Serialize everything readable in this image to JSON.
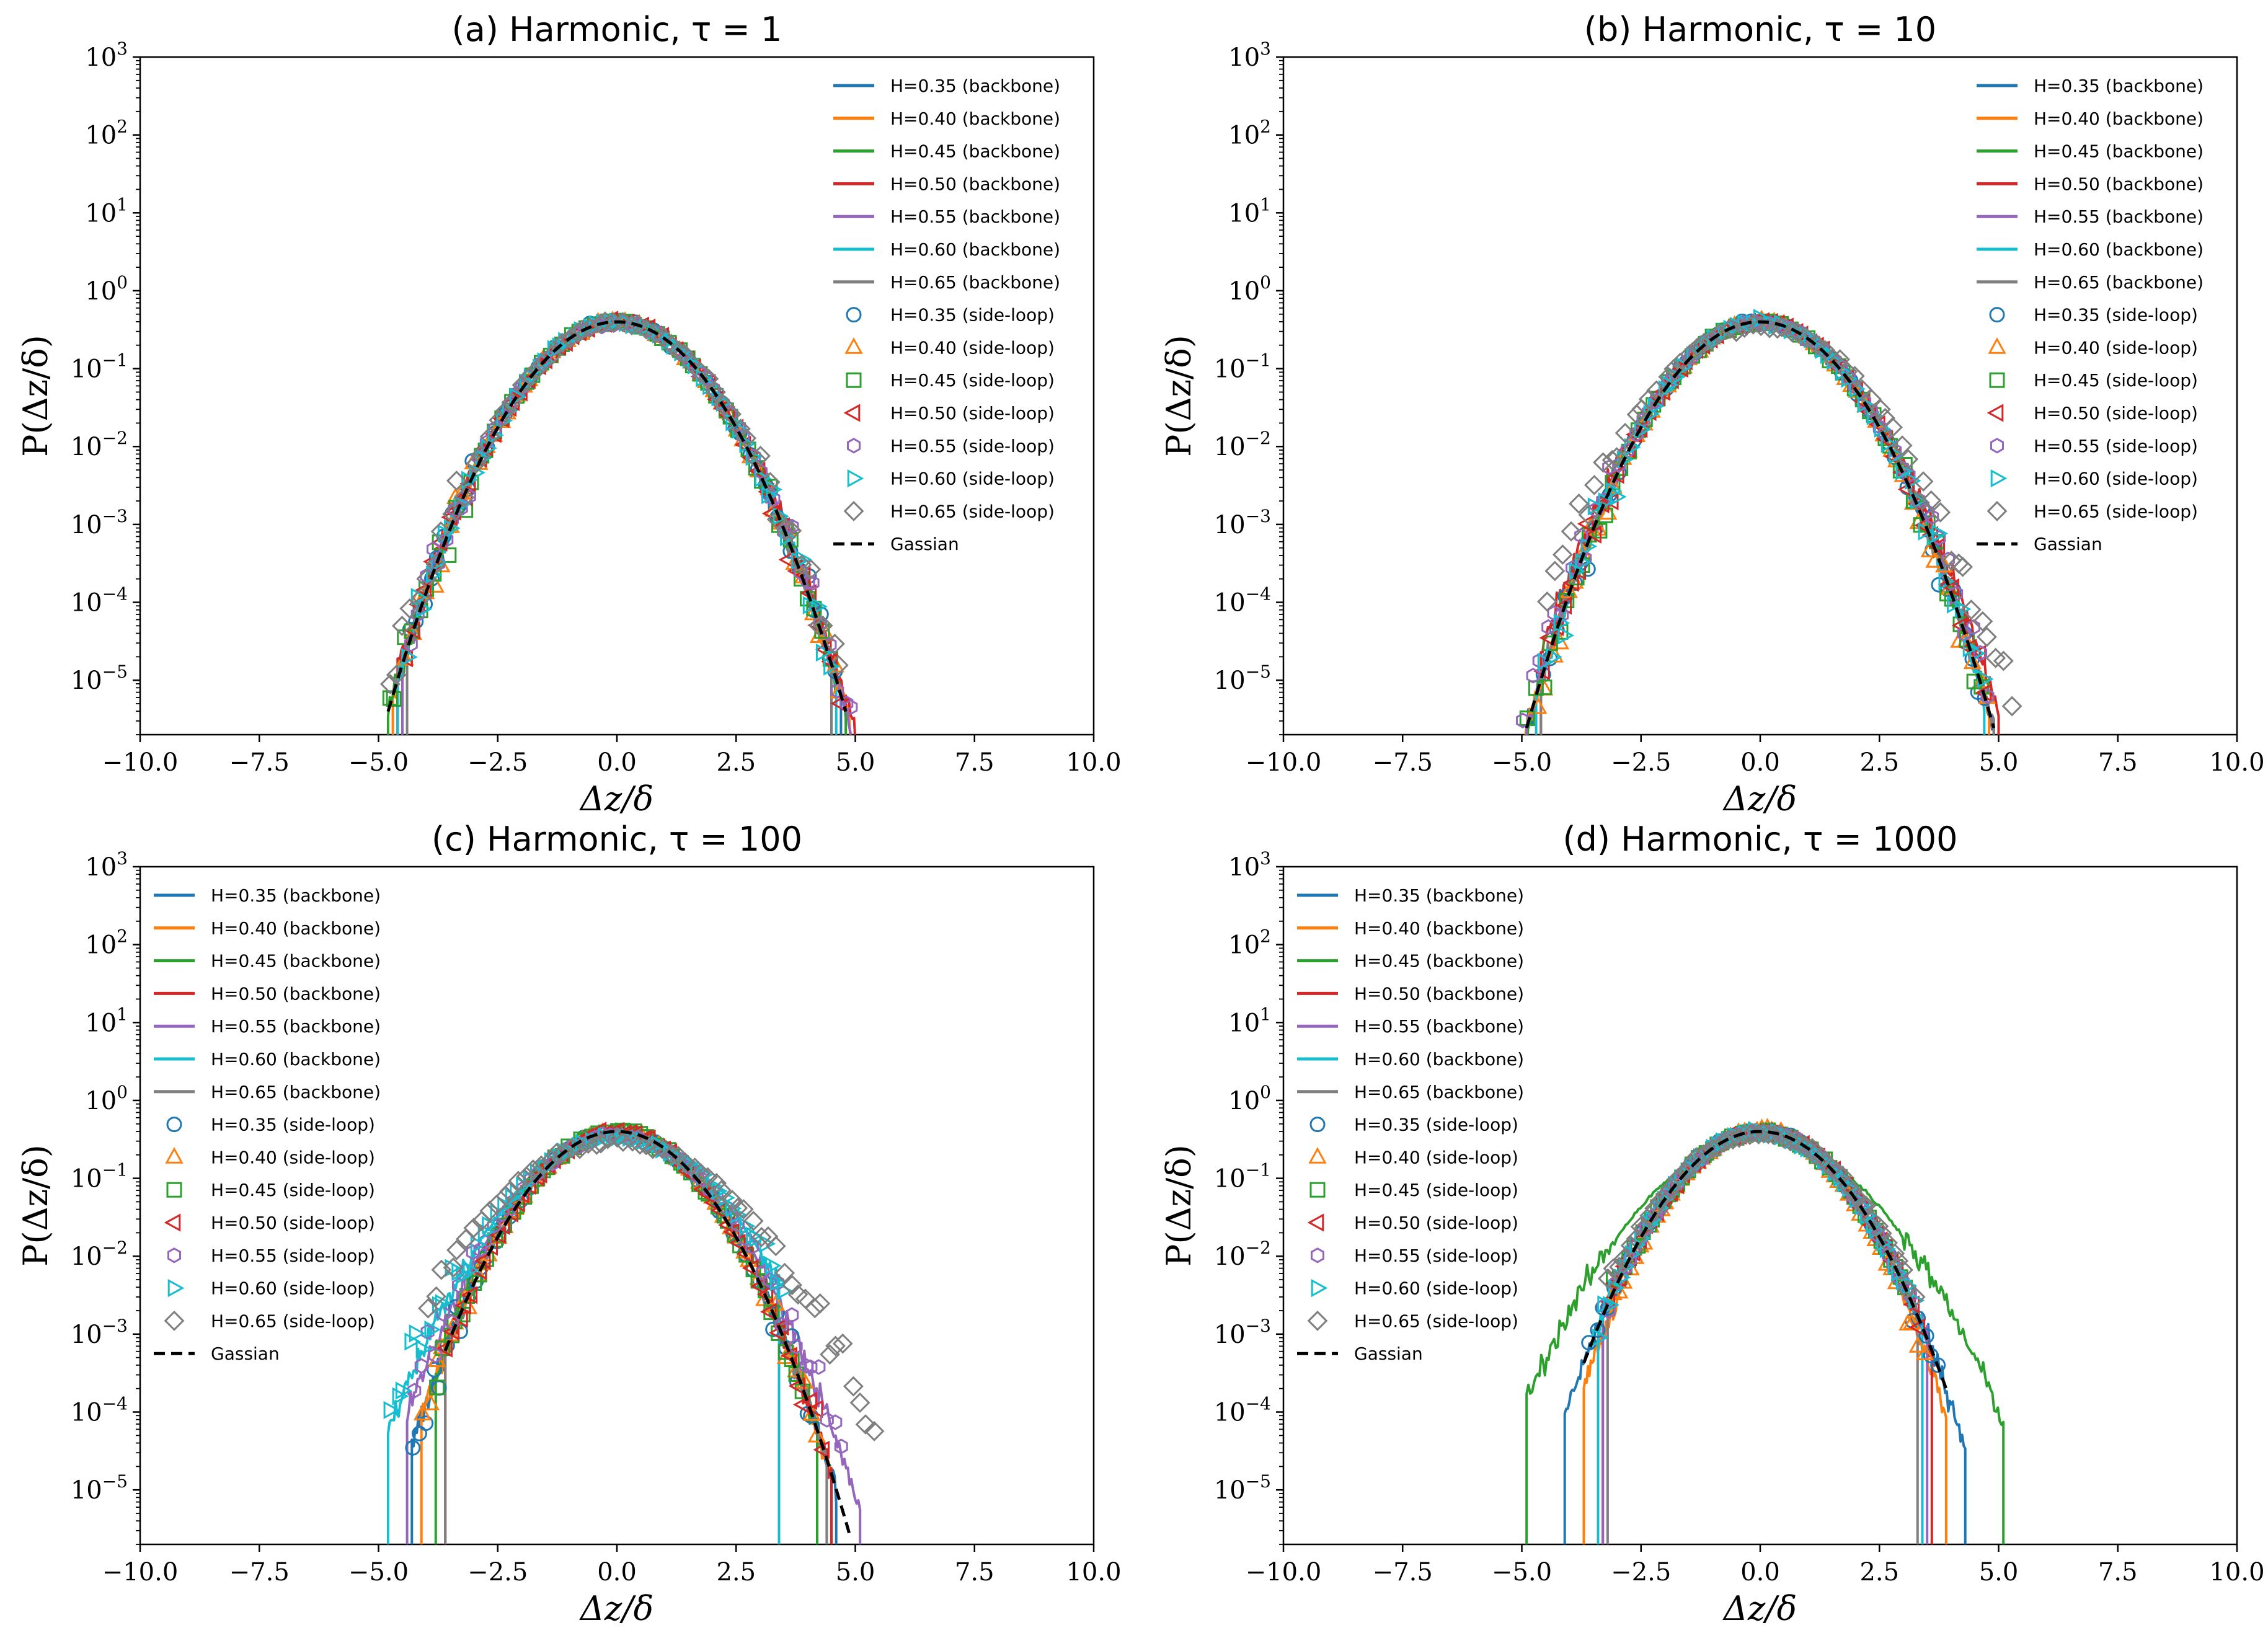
{
  "figure": {
    "gaussian_sigma": 1.0,
    "gaussian_peak": 0.3989,
    "colors": {
      "H=0.35": "#1f77b4",
      "H=0.40": "#ff7f0e",
      "H=0.45": "#2ca02c",
      "H=0.50": "#d62728",
      "H=0.55": "#9467bd",
      "H=0.60": "#17becf",
      "H=0.65": "#7f7f7f",
      "gaussian": "#000000"
    }
  },
  "chart_data": [
    {
      "type": "line",
      "panel": "a",
      "title": "(a) Harmonic, τ = 1",
      "xlabel": "Δz/δ",
      "ylabel": "P(Δz/δ)",
      "xlim": [
        -10,
        10
      ],
      "ylim": [
        2e-06,
        1000
      ],
      "yscale": "log",
      "xticks": [
        "−10.0",
        "−7.5",
        "−5.0",
        "−2.5",
        "0.0",
        "2.5",
        "5.0",
        "7.5",
        "10.0"
      ],
      "yticks": [
        "10−5",
        "10−4",
        "10−3",
        "10−2",
        "10−1",
        "100",
        "101",
        "102",
        "103"
      ],
      "legend_position": "top-right",
      "legend": [
        "H=0.35 (backbone)",
        "H=0.40 (backbone)",
        "H=0.45 (backbone)",
        "H=0.50 (backbone)",
        "H=0.55 (backbone)",
        "H=0.60 (backbone)",
        "H=0.65 (backbone)",
        "H=0.35 (side-loop)",
        "H=0.40 (side-loop)",
        "H=0.45 (side-loop)",
        "H=0.50 (side-loop)",
        "H=0.55 (side-loop)",
        "H=0.60 (side-loop)",
        "H=0.65 (side-loop)",
        "Gassian"
      ],
      "series": [
        {
          "name": "H=0.35 (backbone)",
          "color": "#1f77b4",
          "kind": "line",
          "range": [
            -4.6,
            4.7
          ],
          "sigma": 1.0
        },
        {
          "name": "H=0.40 (backbone)",
          "color": "#ff7f0e",
          "kind": "line",
          "range": [
            -4.7,
            5.1
          ],
          "sigma": 1.0
        },
        {
          "name": "H=0.45 (backbone)",
          "color": "#2ca02c",
          "kind": "line",
          "range": [
            -4.8,
            4.8
          ],
          "sigma": 1.0
        },
        {
          "name": "H=0.50 (backbone)",
          "color": "#d62728",
          "kind": "line",
          "range": [
            -4.6,
            5.2
          ],
          "sigma": 1.02
        },
        {
          "name": "H=0.55 (backbone)",
          "color": "#9467bd",
          "kind": "line",
          "range": [
            -4.5,
            4.9
          ],
          "sigma": 1.0
        },
        {
          "name": "H=0.60 (backbone)",
          "color": "#17becf",
          "kind": "line",
          "range": [
            -4.6,
            4.6
          ],
          "sigma": 1.0
        },
        {
          "name": "H=0.65 (backbone)",
          "color": "#7f7f7f",
          "kind": "line",
          "range": [
            -4.4,
            4.5
          ],
          "sigma": 1.0
        },
        {
          "name": "H=0.35 (side-loop)",
          "color": "#1f77b4",
          "kind": "circle",
          "range": [
            -4.4,
            4.7
          ],
          "sigma": 1.0
        },
        {
          "name": "H=0.40 (side-loop)",
          "color": "#ff7f0e",
          "kind": "tri-up",
          "range": [
            -4.5,
            4.8
          ],
          "sigma": 1.0
        },
        {
          "name": "H=0.45 (side-loop)",
          "color": "#2ca02c",
          "kind": "square",
          "range": [
            -5.0,
            4.6
          ],
          "sigma": 1.0
        },
        {
          "name": "H=0.50 (side-loop)",
          "color": "#d62728",
          "kind": "tri-left",
          "range": [
            -4.5,
            4.8
          ],
          "sigma": 1.0
        },
        {
          "name": "H=0.55 (side-loop)",
          "color": "#9467bd",
          "kind": "hexagon",
          "range": [
            -4.4,
            5.2
          ],
          "sigma": 1.02
        },
        {
          "name": "H=0.60 (side-loop)",
          "color": "#17becf",
          "kind": "tri-right",
          "range": [
            -4.4,
            4.6
          ],
          "sigma": 1.0
        },
        {
          "name": "H=0.65 (side-loop)",
          "color": "#7f7f7f",
          "kind": "diamond",
          "range": [
            -5.0,
            4.8
          ],
          "sigma": 1.03
        }
      ],
      "gaussian": {
        "name": "Gassian",
        "range": [
          -4.8,
          4.8
        ]
      }
    },
    {
      "type": "line",
      "panel": "b",
      "title": "(b) Harmonic, τ = 10",
      "xlabel": "Δz/δ",
      "ylabel": "P(Δz/δ)",
      "xlim": [
        -10,
        10
      ],
      "ylim": [
        2e-06,
        1000
      ],
      "yscale": "log",
      "xticks": [
        "−10.0",
        "−7.5",
        "−5.0",
        "−2.5",
        "0.0",
        "2.5",
        "5.0",
        "7.5",
        "10.0"
      ],
      "yticks": [
        "10−5",
        "10−4",
        "10−3",
        "10−2",
        "10−1",
        "100",
        "101",
        "102",
        "103"
      ],
      "legend_position": "top-right",
      "legend": [
        "H=0.35 (backbone)",
        "H=0.40 (backbone)",
        "H=0.45 (backbone)",
        "H=0.50 (backbone)",
        "H=0.55 (backbone)",
        "H=0.60 (backbone)",
        "H=0.65 (backbone)",
        "H=0.35 (side-loop)",
        "H=0.40 (side-loop)",
        "H=0.45 (side-loop)",
        "H=0.50 (side-loop)",
        "H=0.55 (side-loop)",
        "H=0.60 (side-loop)",
        "H=0.65 (side-loop)",
        "Gassian"
      ],
      "series": [
        {
          "name": "H=0.35 (backbone)",
          "color": "#1f77b4",
          "kind": "line",
          "range": [
            -4.9,
            4.9
          ],
          "sigma": 1.0
        },
        {
          "name": "H=0.40 (backbone)",
          "color": "#ff7f0e",
          "kind": "line",
          "range": [
            -5.3,
            4.8
          ],
          "sigma": 1.0
        },
        {
          "name": "H=0.45 (backbone)",
          "color": "#2ca02c",
          "kind": "line",
          "range": [
            -5.1,
            4.9
          ],
          "sigma": 1.0
        },
        {
          "name": "H=0.50 (backbone)",
          "color": "#d62728",
          "kind": "line",
          "range": [
            -4.6,
            5.0
          ],
          "sigma": 1.04
        },
        {
          "name": "H=0.55 (backbone)",
          "color": "#9467bd",
          "kind": "line",
          "range": [
            -4.9,
            4.9
          ],
          "sigma": 1.0
        },
        {
          "name": "H=0.60 (backbone)",
          "color": "#17becf",
          "kind": "line",
          "range": [
            -4.7,
            4.7
          ],
          "sigma": 1.0
        },
        {
          "name": "H=0.65 (backbone)",
          "color": "#7f7f7f",
          "kind": "line",
          "range": [
            -4.6,
            4.9
          ],
          "sigma": 1.0
        },
        {
          "name": "H=0.35 (side-loop)",
          "color": "#1f77b4",
          "kind": "circle",
          "range": [
            -4.6,
            5.0
          ],
          "sigma": 1.0
        },
        {
          "name": "H=0.40 (side-loop)",
          "color": "#ff7f0e",
          "kind": "tri-up",
          "range": [
            -4.7,
            4.9
          ],
          "sigma": 1.0
        },
        {
          "name": "H=0.45 (side-loop)",
          "color": "#2ca02c",
          "kind": "square",
          "range": [
            -4.9,
            4.8
          ],
          "sigma": 1.0
        },
        {
          "name": "H=0.50 (side-loop)",
          "color": "#d62728",
          "kind": "tri-left",
          "range": [
            -4.6,
            5.0
          ],
          "sigma": 1.0
        },
        {
          "name": "H=0.55 (side-loop)",
          "color": "#9467bd",
          "kind": "hexagon",
          "range": [
            -5.0,
            4.9
          ],
          "sigma": 1.02
        },
        {
          "name": "H=0.60 (side-loop)",
          "color": "#17becf",
          "kind": "tri-right",
          "range": [
            -4.6,
            4.8
          ],
          "sigma": 1.0
        },
        {
          "name": "H=0.65 (side-loop)",
          "color": "#7f7f7f",
          "kind": "diamond",
          "range": [
            -4.5,
            5.4
          ],
          "sigma": 1.12
        }
      ],
      "gaussian": {
        "name": "Gassian",
        "range": [
          -4.9,
          4.9
        ]
      }
    },
    {
      "type": "line",
      "panel": "c",
      "title": "(c) Harmonic, τ = 100",
      "xlabel": "Δz/δ",
      "ylabel": "P(Δz/δ)",
      "xlim": [
        -10,
        10
      ],
      "ylim": [
        2e-06,
        1000
      ],
      "yscale": "log",
      "xticks": [
        "−10.0",
        "−7.5",
        "−5.0",
        "−2.5",
        "0.0",
        "2.5",
        "5.0",
        "7.5",
        "10.0"
      ],
      "yticks": [
        "10−5",
        "10−4",
        "10−3",
        "10−2",
        "10−1",
        "100",
        "101",
        "102",
        "103"
      ],
      "legend_position": "top-left",
      "legend": [
        "H=0.35 (backbone)",
        "H=0.40 (backbone)",
        "H=0.45 (backbone)",
        "H=0.50 (backbone)",
        "H=0.55 (backbone)",
        "H=0.60 (backbone)",
        "H=0.65 (backbone)",
        "H=0.35 (side-loop)",
        "H=0.40 (side-loop)",
        "H=0.45 (side-loop)",
        "H=0.50 (side-loop)",
        "H=0.55 (side-loop)",
        "H=0.60 (side-loop)",
        "H=0.65 (side-loop)",
        "Gassian"
      ],
      "series": [
        {
          "name": "H=0.35 (backbone)",
          "color": "#1f77b4",
          "kind": "line",
          "range": [
            -4.3,
            4.6
          ],
          "sigma": 1.0
        },
        {
          "name": "H=0.40 (backbone)",
          "color": "#ff7f0e",
          "kind": "line",
          "range": [
            -4.1,
            4.5
          ],
          "sigma": 1.0
        },
        {
          "name": "H=0.45 (backbone)",
          "color": "#2ca02c",
          "kind": "line",
          "range": [
            -3.8,
            4.2
          ],
          "sigma": 1.0
        },
        {
          "name": "H=0.50 (backbone)",
          "color": "#d62728",
          "kind": "line",
          "range": [
            -3.6,
            4.5
          ],
          "sigma": 1.0
        },
        {
          "name": "H=0.55 (backbone)",
          "color": "#9467bd",
          "kind": "line",
          "range": [
            -4.4,
            5.1
          ],
          "sigma": 1.08
        },
        {
          "name": "H=0.60 (backbone)",
          "color": "#17becf",
          "kind": "line",
          "range": [
            -4.8,
            3.4
          ],
          "sigma": 1.15
        },
        {
          "name": "H=0.65 (backbone)",
          "color": "#7f7f7f",
          "kind": "line",
          "range": [
            -3.6,
            4.4
          ],
          "sigma": 1.0
        },
        {
          "name": "H=0.35 (side-loop)",
          "color": "#1f77b4",
          "kind": "circle",
          "range": [
            -4.3,
            4.2
          ],
          "sigma": 1.0
        },
        {
          "name": "H=0.40 (side-loop)",
          "color": "#ff7f0e",
          "kind": "tri-up",
          "range": [
            -4.1,
            4.3
          ],
          "sigma": 1.0
        },
        {
          "name": "H=0.45 (side-loop)",
          "color": "#2ca02c",
          "kind": "square",
          "range": [
            -3.8,
            4.0
          ],
          "sigma": 1.0
        },
        {
          "name": "H=0.50 (side-loop)",
          "color": "#d62728",
          "kind": "tri-left",
          "range": [
            -3.6,
            4.4
          ],
          "sigma": 1.0
        },
        {
          "name": "H=0.55 (side-loop)",
          "color": "#9467bd",
          "kind": "hexagon",
          "range": [
            -4.3,
            4.8
          ],
          "sigma": 1.1
        },
        {
          "name": "H=0.60 (side-loop)",
          "color": "#17becf",
          "kind": "tri-right",
          "range": [
            -4.8,
            3.6
          ],
          "sigma": 1.18
        },
        {
          "name": "H=0.65 (side-loop)",
          "color": "#7f7f7f",
          "kind": "diamond",
          "range": [
            -4.0,
            5.5
          ],
          "sigma": 1.3
        }
      ],
      "gaussian": {
        "name": "Gassian",
        "range": [
          -3.6,
          4.9
        ]
      }
    },
    {
      "type": "line",
      "panel": "d",
      "title": "(d) Harmonic, τ = 1000",
      "xlabel": "Δz/δ",
      "ylabel": "P(Δz/δ)",
      "xlim": [
        -10,
        10
      ],
      "ylim": [
        2e-06,
        1000
      ],
      "yscale": "log",
      "xticks": [
        "−10.0",
        "−7.5",
        "−5.0",
        "−2.5",
        "0.0",
        "2.5",
        "5.0",
        "7.5",
        "10.0"
      ],
      "yticks": [
        "10−5",
        "10−4",
        "10−3",
        "10−2",
        "10−1",
        "100",
        "101",
        "102",
        "103"
      ],
      "legend_position": "top-left",
      "legend": [
        "H=0.35 (backbone)",
        "H=0.40 (backbone)",
        "H=0.45 (backbone)",
        "H=0.50 (backbone)",
        "H=0.55 (backbone)",
        "H=0.60 (backbone)",
        "H=0.65 (backbone)",
        "H=0.35 (side-loop)",
        "H=0.40 (side-loop)",
        "H=0.45 (side-loop)",
        "H=0.50 (side-loop)",
        "H=0.55 (side-loop)",
        "H=0.60 (side-loop)",
        "H=0.65 (side-loop)",
        "Gassian"
      ],
      "series": [
        {
          "name": "H=0.35 (backbone)",
          "color": "#1f77b4",
          "kind": "line",
          "range": [
            -4.1,
            4.3
          ],
          "sigma": 1.0
        },
        {
          "name": "H=0.40 (backbone)",
          "color": "#ff7f0e",
          "kind": "line",
          "range": [
            -3.7,
            3.9
          ],
          "sigma": 0.95
        },
        {
          "name": "H=0.45 (backbone)",
          "color": "#2ca02c",
          "kind": "line",
          "range": [
            -4.9,
            5.1
          ],
          "sigma": 1.25
        },
        {
          "name": "H=0.50 (backbone)",
          "color": "#d62728",
          "kind": "line",
          "range": [
            -3.3,
            3.6
          ],
          "sigma": 1.0
        },
        {
          "name": "H=0.55 (backbone)",
          "color": "#9467bd",
          "kind": "line",
          "range": [
            -3.3,
            3.5
          ],
          "sigma": 1.0
        },
        {
          "name": "H=0.60 (backbone)",
          "color": "#17becf",
          "kind": "line",
          "range": [
            -3.4,
            3.4
          ],
          "sigma": 1.0
        },
        {
          "name": "H=0.65 (backbone)",
          "color": "#7f7f7f",
          "kind": "line",
          "range": [
            -3.2,
            3.3
          ],
          "sigma": 1.0
        },
        {
          "name": "H=0.35 (side-loop)",
          "color": "#1f77b4",
          "kind": "circle",
          "range": [
            -3.6,
            3.8
          ],
          "sigma": 1.0
        },
        {
          "name": "H=0.40 (side-loop)",
          "color": "#ff7f0e",
          "kind": "tri-up",
          "range": [
            -3.1,
            3.5
          ],
          "sigma": 0.95
        },
        {
          "name": "H=0.45 (side-loop)",
          "color": "#2ca02c",
          "kind": "square",
          "range": [
            -3.1,
            3.1
          ],
          "sigma": 1.0
        },
        {
          "name": "H=0.50 (side-loop)",
          "color": "#d62728",
          "kind": "tri-left",
          "range": [
            -3.2,
            3.4
          ],
          "sigma": 1.0
        },
        {
          "name": "H=0.55 (side-loop)",
          "color": "#9467bd",
          "kind": "hexagon",
          "range": [
            -3.3,
            3.2
          ],
          "sigma": 1.0
        },
        {
          "name": "H=0.60 (side-loop)",
          "color": "#17becf",
          "kind": "tri-right",
          "range": [
            -3.4,
            3.3
          ],
          "sigma": 1.0
        },
        {
          "name": "H=0.65 (side-loop)",
          "color": "#7f7f7f",
          "kind": "diamond",
          "range": [
            -3.2,
            3.3
          ],
          "sigma": 1.05
        }
      ],
      "gaussian": {
        "name": "Gassian",
        "range": [
          -3.7,
          3.9
        ]
      }
    }
  ]
}
